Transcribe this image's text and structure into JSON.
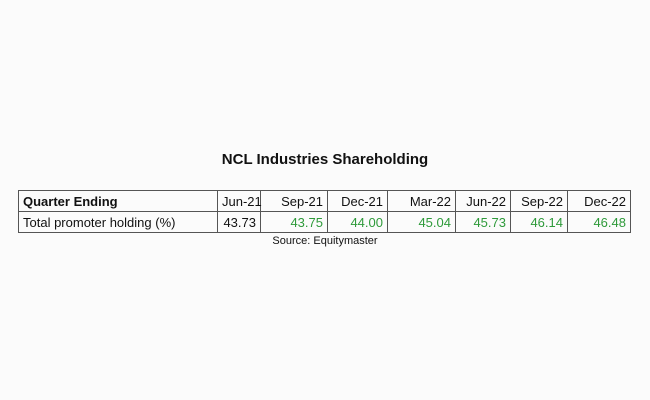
{
  "title": "NCL Industries Shareholding",
  "table": {
    "header": [
      "Quarter Ending",
      "Jun-21",
      "Sep-21",
      "Dec-21",
      "Mar-22",
      "Jun-22",
      "Sep-22",
      "Dec-22"
    ],
    "rows": [
      [
        "Total promoter holding (%)",
        "43.73",
        "43.75",
        "44.00",
        "45.04",
        "45.73",
        "46.14",
        "46.48"
      ]
    ]
  },
  "source": "Source: Equitymaster"
}
